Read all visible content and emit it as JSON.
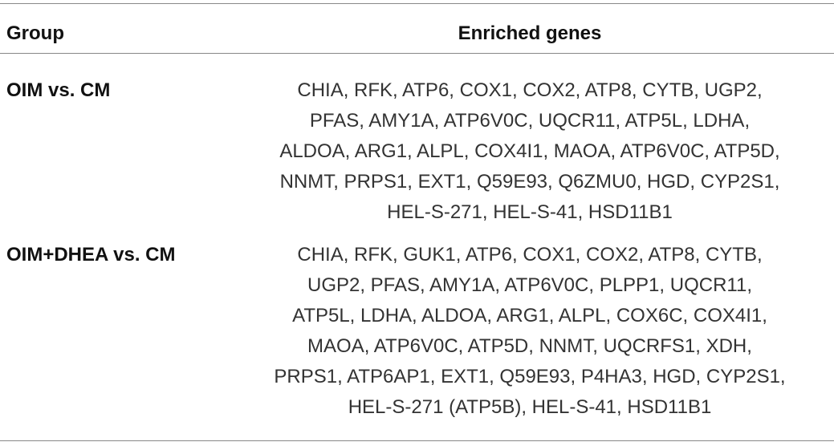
{
  "table": {
    "header": [
      "Group",
      "Enriched genes"
    ],
    "rows": [
      {
        "group": "OIM vs. CM",
        "genes": [
          "CHIA, RFK, ATP6, COX1, COX2, ATP8, CYTB, UGP2,",
          "PFAS, AMY1A, ATP6V0C, UQCR11, ATP5L, LDHA,",
          "ALDOA, ARG1, ALPL, COX4I1, MAOA, ATP6V0C, ATP5D,",
          "NNMT, PRPS1, EXT1, Q59E93, Q6ZMU0, HGD, CYP2S1,",
          "HEL-S-271, HEL-S-41, HSD11B1"
        ]
      },
      {
        "group": "OIM+DHEA vs. CM",
        "genes": [
          "CHIA, RFK, GUK1, ATP6, COX1, COX2, ATP8, CYTB,",
          "UGP2, PFAS, AMY1A, ATP6V0C, PLPP1, UQCR11,",
          "ATP5L, LDHA, ALDOA, ARG1, ALPL, COX6C, COX4I1,",
          "MAOA, ATP6V0C, ATP5D, NNMT, UQCRFS1, XDH,",
          "PRPS1, ATP6AP1, EXT1, Q59E93, P4HA3, HGD, CYP2S1,",
          "HEL-S-271 (ATP5B), HEL-S-41, HSD11B1"
        ]
      }
    ]
  }
}
